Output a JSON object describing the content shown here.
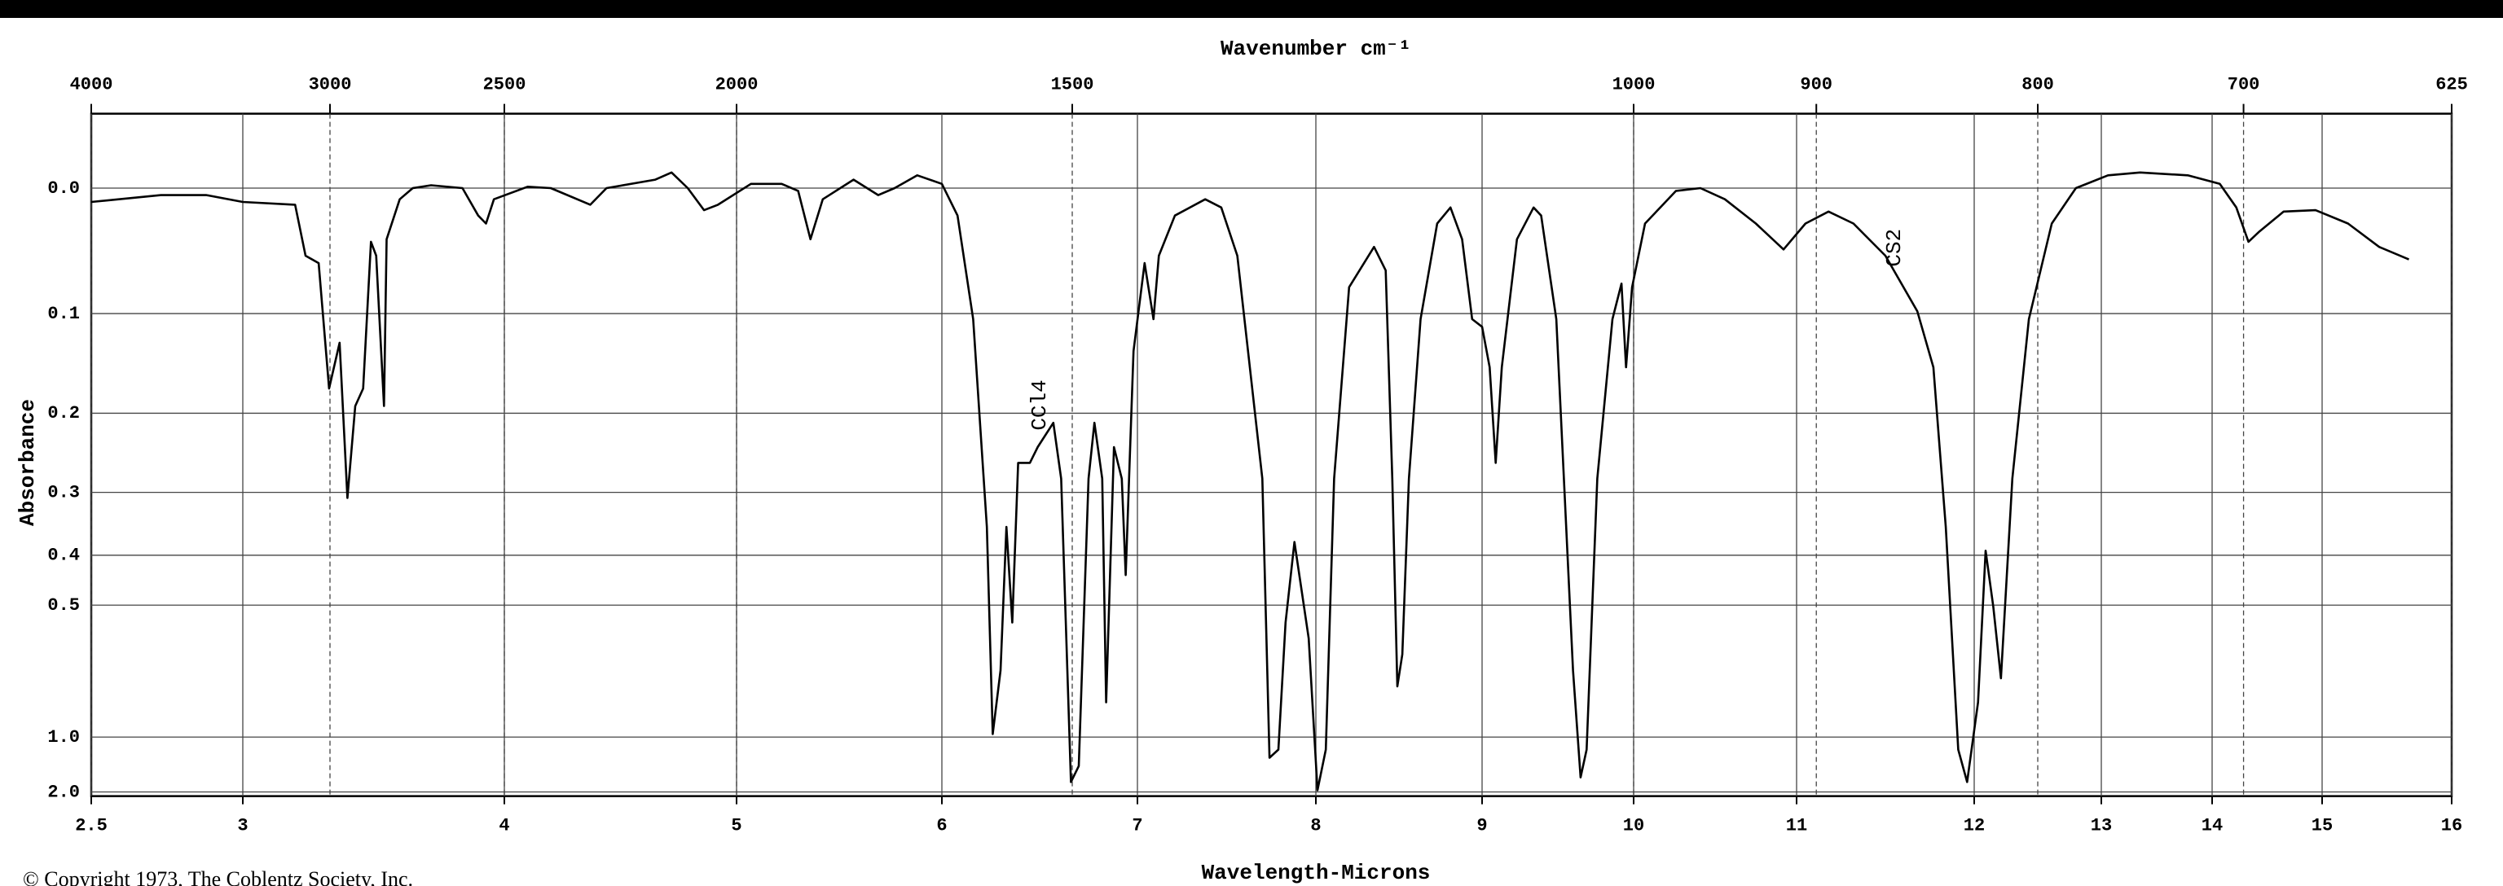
{
  "chart_data": {
    "type": "line",
    "x2label": "Wavenumber cm⁻¹",
    "xlabel": "Wavelength-Microns",
    "ylabel": "Absorbance",
    "footer": "© Copyright 1973, The Coblentz Society, Inc.",
    "color": "#000000",
    "grid": true,
    "yscale": "transmittance",
    "xlim": [
      2.5,
      16
    ],
    "xticks": [
      2.5,
      3,
      4,
      5,
      6,
      7,
      8,
      9,
      10,
      11,
      12,
      13,
      14,
      15,
      16
    ],
    "x2lim": [
      4000,
      625
    ],
    "x2ticks": [
      4000,
      3000,
      2500,
      2000,
      1500,
      1000,
      900,
      800,
      700,
      625
    ],
    "ylim": [
      -0.05,
      2.5
    ],
    "yticks": [
      {
        "value": 0,
        "label": "0.0"
      },
      0.1,
      0.2,
      0.3,
      0.4,
      0.5,
      {
        "value": 1,
        "label": "1.0"
      },
      {
        "value": 2,
        "label": "2.0"
      }
    ],
    "annotations": [
      {
        "text": "CCl4",
        "x": 6.5,
        "y": 0.22
      },
      {
        "text": "CS2",
        "x": 11.55,
        "y": 0.06
      }
    ],
    "x": [
      2.5,
      2.73,
      2.88,
      3.0,
      3.2,
      3.24,
      3.29,
      3.33,
      3.37,
      3.4,
      3.43,
      3.46,
      3.49,
      3.51,
      3.54,
      3.55,
      3.6,
      3.65,
      3.72,
      3.84,
      3.9,
      3.93,
      3.96,
      4.1,
      4.2,
      4.37,
      4.44,
      4.65,
      4.72,
      4.79,
      4.86,
      4.92,
      5.07,
      5.22,
      5.3,
      5.36,
      5.42,
      5.57,
      5.69,
      5.77,
      5.88,
      6.0,
      6.08,
      6.16,
      6.23,
      6.26,
      6.3,
      6.33,
      6.36,
      6.39,
      6.45,
      6.49,
      6.57,
      6.61,
      6.66,
      6.7,
      6.75,
      6.78,
      6.82,
      6.84,
      6.88,
      6.92,
      6.94,
      6.98,
      7.04,
      7.09,
      7.12,
      7.21,
      7.38,
      7.47,
      7.56,
      7.7,
      7.74,
      7.79,
      7.83,
      7.88,
      7.92,
      7.96,
      8.01,
      8.06,
      8.11,
      8.2,
      8.35,
      8.42,
      8.46,
      8.49,
      8.52,
      8.56,
      8.63,
      8.73,
      8.81,
      8.88,
      8.94,
      9.0,
      9.05,
      9.09,
      9.13,
      9.23,
      9.34,
      9.39,
      9.49,
      9.6,
      9.65,
      9.69,
      9.76,
      9.86,
      9.92,
      9.95,
      9.99,
      10.07,
      10.26,
      10.41,
      10.56,
      10.75,
      10.92,
      11.05,
      11.18,
      11.32,
      11.5,
      11.68,
      11.77,
      11.84,
      11.91,
      11.96,
      12.03,
      12.09,
      12.15,
      12.21,
      12.3,
      12.43,
      12.61,
      12.8,
      13.06,
      13.35,
      13.78,
      14.07,
      14.22,
      14.33,
      14.43,
      14.65,
      14.94,
      15.2,
      15.44,
      15.67
    ],
    "values": [
      0.01,
      0.005,
      0.005,
      0.01,
      0.012,
      0.051,
      0.057,
      0.173,
      0.127,
      0.308,
      0.192,
      0.173,
      0.04,
      0.051,
      0.192,
      0.038,
      0.008,
      0,
      -0.002,
      0,
      0.02,
      0.026,
      0.008,
      -0.001,
      0,
      0.012,
      0,
      -0.006,
      -0.011,
      0,
      0.016,
      0.012,
      -0.003,
      -0.003,
      0.002,
      0.038,
      0.008,
      -0.006,
      0.005,
      0,
      -0.009,
      -0.003,
      0.02,
      0.105,
      0.352,
      0.979,
      0.679,
      0.352,
      0.541,
      0.26,
      0.26,
      0.24,
      0.211,
      0.281,
      1.58,
      1.28,
      0.281,
      0.211,
      0.281,
      0.804,
      0.24,
      0.281,
      0.437,
      0.135,
      0.057,
      0.105,
      0.051,
      0.02,
      0.008,
      0.014,
      0.051,
      0.281,
      1.18,
      1.1,
      0.541,
      0.377,
      0.468,
      0.582,
      1.89,
      1.1,
      0.281,
      0.077,
      0.044,
      0.063,
      0.281,
      0.737,
      0.628,
      0.281,
      0.105,
      0.026,
      0.014,
      0.038,
      0.105,
      0.112,
      0.151,
      0.26,
      0.151,
      0.038,
      0.014,
      0.02,
      0.105,
      0.679,
      1.47,
      1.1,
      0.281,
      0.105,
      0.074,
      0.151,
      0.077,
      0.026,
      0.002,
      0,
      0.008,
      0.026,
      0.046,
      0.026,
      0.017,
      0.026,
      0.051,
      0.098,
      0.151,
      0.352,
      1.1,
      1.58,
      0.804,
      0.392,
      0.503,
      0.707,
      0.281,
      0.105,
      0.026,
      0,
      -0.009,
      -0.011,
      -0.009,
      -0.003,
      0.014,
      0.04,
      0.032,
      0.017,
      0.016,
      0.026,
      0.044,
      0.054
    ]
  }
}
